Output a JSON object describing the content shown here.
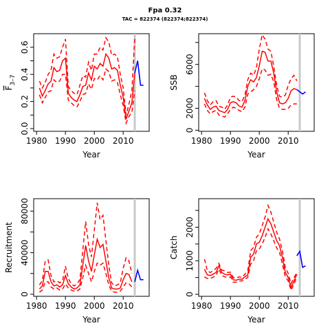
{
  "title": "Fpa 0.32",
  "subtitle": "TAC = 822374 (822374;822374)",
  "colors": {
    "historical": "#ff0000",
    "projection": "#0000ff",
    "divider": "#c8c8c8"
  },
  "chart_data": [
    {
      "type": "line",
      "ylabel_main": "F",
      "ylabel_sub": "3–7",
      "xlabel": "Year",
      "xlim": [
        1979,
        2019
      ],
      "ylim": [
        -0.02,
        0.7
      ],
      "xticks": [
        "1980",
        "1990",
        "2000",
        "2010"
      ],
      "yticks": [
        "0.0",
        "0.2",
        "0.4",
        "0.6"
      ],
      "ytick_values": [
        0.0,
        0.2,
        0.4,
        0.6
      ],
      "yminor": [
        0.1,
        0.3,
        0.5
      ],
      "divider_x": 2014,
      "x_hist": [
        1981,
        1982,
        1983,
        1984,
        1985,
        1986,
        1987,
        1988,
        1989,
        1990,
        1991,
        1992,
        1993,
        1994,
        1995,
        1996,
        1997,
        1998,
        1999,
        2000,
        2001,
        2002,
        2003,
        2004,
        2005,
        2006,
        2007,
        2008,
        2009,
        2010,
        2011,
        2012,
        2013,
        2014
      ],
      "estimate": [
        0.3,
        0.24,
        0.28,
        0.33,
        0.35,
        0.45,
        0.42,
        0.43,
        0.5,
        0.52,
        0.26,
        0.23,
        0.21,
        0.2,
        0.25,
        0.31,
        0.32,
        0.41,
        0.36,
        0.46,
        0.44,
        0.48,
        0.46,
        0.55,
        0.52,
        0.44,
        0.45,
        0.43,
        0.32,
        0.23,
        0.07,
        0.13,
        0.19,
        0.41
      ],
      "upper": [
        0.35,
        0.3,
        0.34,
        0.4,
        0.43,
        0.55,
        0.52,
        0.53,
        0.6,
        0.66,
        0.31,
        0.28,
        0.26,
        0.25,
        0.32,
        0.39,
        0.38,
        0.49,
        0.43,
        0.55,
        0.55,
        0.6,
        0.58,
        0.67,
        0.64,
        0.54,
        0.55,
        0.53,
        0.4,
        0.3,
        0.1,
        0.18,
        0.28,
        0.67
      ],
      "lower": [
        0.25,
        0.19,
        0.23,
        0.27,
        0.28,
        0.36,
        0.34,
        0.35,
        0.4,
        0.4,
        0.21,
        0.19,
        0.17,
        0.16,
        0.2,
        0.25,
        0.26,
        0.33,
        0.29,
        0.37,
        0.36,
        0.39,
        0.36,
        0.44,
        0.42,
        0.35,
        0.36,
        0.34,
        0.25,
        0.17,
        0.04,
        0.09,
        0.12,
        0.28
      ],
      "x_proj": [
        2014,
        2015,
        2016,
        2017
      ],
      "projection": [
        0.41,
        0.5,
        0.32,
        0.32
      ]
    },
    {
      "type": "line",
      "ylabel_main": "SSB",
      "ylabel_sub": "",
      "xlabel": "Year",
      "xlim": [
        1979,
        2019
      ],
      "ylim": [
        -100,
        8800
      ],
      "xticks": [
        "1980",
        "1990",
        "2000",
        "2010"
      ],
      "yticks": [
        "0",
        "2000",
        "6000"
      ],
      "ytick_values": [
        0,
        2000,
        6000
      ],
      "yminor": [
        4000,
        8000
      ],
      "divider_x": 2014,
      "x_hist": [
        1981,
        1982,
        1983,
        1984,
        1985,
        1986,
        1987,
        1988,
        1989,
        1990,
        1991,
        1992,
        1993,
        1994,
        1995,
        1996,
        1997,
        1998,
        1999,
        2000,
        2001,
        2002,
        2003,
        2004,
        2005,
        2006,
        2007,
        2008,
        2009,
        2010,
        2011,
        2012,
        2013
      ],
      "estimate": [
        2900,
        2300,
        1900,
        2100,
        2200,
        1800,
        1700,
        1600,
        1900,
        2500,
        2600,
        2500,
        2200,
        2100,
        2700,
        4000,
        4600,
        4400,
        4800,
        5900,
        7200,
        7100,
        6300,
        6300,
        5200,
        3500,
        2500,
        2400,
        2500,
        2900,
        3600,
        3800,
        3700
      ],
      "upper": [
        3400,
        2700,
        2300,
        2600,
        2700,
        2200,
        2100,
        1900,
        2300,
        3000,
        3100,
        3000,
        2700,
        2600,
        3200,
        4600,
        5200,
        5000,
        5700,
        7400,
        8700,
        8300,
        7400,
        7200,
        5800,
        4100,
        3100,
        3000,
        3200,
        4100,
        4700,
        5000,
        4500
      ],
      "lower": [
        2400,
        1800,
        1500,
        1700,
        1800,
        1400,
        1300,
        1200,
        1500,
        1900,
        2100,
        2000,
        1800,
        1700,
        2100,
        3300,
        3500,
        3700,
        4000,
        4700,
        5600,
        5500,
        5000,
        5100,
        4400,
        2800,
        2000,
        1900,
        1900,
        2000,
        2300,
        2400,
        2400
      ],
      "x_proj": [
        2013,
        2014,
        2015,
        2016
      ],
      "projection": [
        3700,
        3500,
        3300,
        3500
      ]
    },
    {
      "type": "line",
      "ylabel_main": "Recruitment",
      "ylabel_sub": "",
      "xlabel": "Year",
      "xlim": [
        1979,
        2019
      ],
      "ylim": [
        -2000,
        92000
      ],
      "xticks": [
        "1980",
        "1990",
        "2000",
        "2010"
      ],
      "yticks": [
        "0",
        "40000",
        "80000"
      ],
      "ytick_values": [
        0,
        40000,
        80000
      ],
      "yminor": [
        20000,
        60000
      ],
      "divider_x": 2014,
      "x_hist": [
        1981,
        1982,
        1983,
        1984,
        1985,
        1986,
        1987,
        1988,
        1989,
        1990,
        1991,
        1992,
        1993,
        1994,
        1995,
        1996,
        1997,
        1998,
        1999,
        2000,
        2001,
        2002,
        2003,
        2004,
        2005,
        2006,
        2007,
        2008,
        2009,
        2010,
        2011,
        2012,
        2013
      ],
      "estimate": [
        5000,
        8000,
        22000,
        22000,
        12000,
        8000,
        9000,
        7000,
        9000,
        18000,
        10000,
        7000,
        5000,
        6000,
        9000,
        28000,
        47000,
        32000,
        22000,
        38000,
        53000,
        45000,
        48000,
        32000,
        16000,
        6000,
        5000,
        5000,
        6000,
        14000,
        20000,
        19000,
        12000
      ],
      "upper": [
        9000,
        13000,
        32000,
        33000,
        18000,
        12000,
        13000,
        11000,
        13000,
        27000,
        15000,
        10000,
        8000,
        10000,
        14000,
        42000,
        70000,
        48000,
        36000,
        62000,
        88000,
        72000,
        76000,
        52000,
        28000,
        11000,
        8000,
        9000,
        11000,
        25000,
        35000,
        32000,
        20000
      ],
      "lower": [
        2000,
        4000,
        12000,
        12000,
        7000,
        5000,
        6000,
        4000,
        5000,
        10000,
        6000,
        4000,
        3000,
        3000,
        5000,
        16000,
        28000,
        20000,
        12000,
        22000,
        30000,
        28000,
        30000,
        20000,
        9000,
        3000,
        2000,
        2000,
        3000,
        7000,
        11000,
        10000,
        7000
      ],
      "x_proj": [
        2014,
        2015,
        2016,
        2017
      ],
      "projection": [
        12000,
        23000,
        14000,
        14000
      ]
    },
    {
      "type": "line",
      "ylabel_main": "Catch",
      "ylabel_sub": "",
      "xlabel": "Year",
      "xlim": [
        1979,
        2019
      ],
      "ylim": [
        -60,
        2850
      ],
      "xticks": [
        "1980",
        "1990",
        "2000",
        "2010"
      ],
      "yticks": [
        "0",
        "1000",
        "2000"
      ],
      "ytick_values": [
        0,
        1000,
        2000
      ],
      "yminor": [
        500,
        1500,
        2500
      ],
      "divider_x": 2014,
      "x_hist": [
        1981,
        1982,
        1983,
        1984,
        1985,
        1986,
        1987,
        1988,
        1989,
        1990,
        1991,
        1992,
        1993,
        1994,
        1995,
        1996,
        1997,
        1998,
        1999,
        2000,
        2001,
        2002,
        2003,
        2004,
        2005,
        2006,
        2007,
        2008,
        2009,
        2010,
        2011,
        2012,
        2013
      ],
      "estimate": [
        750,
        580,
        560,
        600,
        650,
        850,
        650,
        600,
        580,
        600,
        430,
        420,
        450,
        450,
        520,
        580,
        1100,
        1200,
        1500,
        1550,
        1750,
        2000,
        2250,
        2100,
        1850,
        1600,
        1450,
        1100,
        650,
        500,
        200,
        400,
        600
      ],
      "upper": [
        1050,
        700,
        650,
        700,
        770,
        920,
        720,
        700,
        650,
        660,
        500,
        480,
        520,
        500,
        600,
        700,
        1300,
        1400,
        1700,
        1800,
        2050,
        2300,
        2650,
        2450,
        2150,
        1850,
        1650,
        1300,
        800,
        620,
        320,
        500,
        650
      ],
      "lower": [
        520,
        470,
        470,
        510,
        560,
        750,
        560,
        520,
        500,
        520,
        360,
        360,
        400,
        400,
        450,
        500,
        900,
        1000,
        1300,
        1350,
        1500,
        1700,
        1950,
        1800,
        1600,
        1380,
        1250,
        900,
        520,
        400,
        120,
        300,
        520
      ],
      "x_proj": [
        2013,
        2014,
        2015,
        2016
      ],
      "projection": [
        1150,
        1280,
        800,
        850
      ]
    }
  ]
}
